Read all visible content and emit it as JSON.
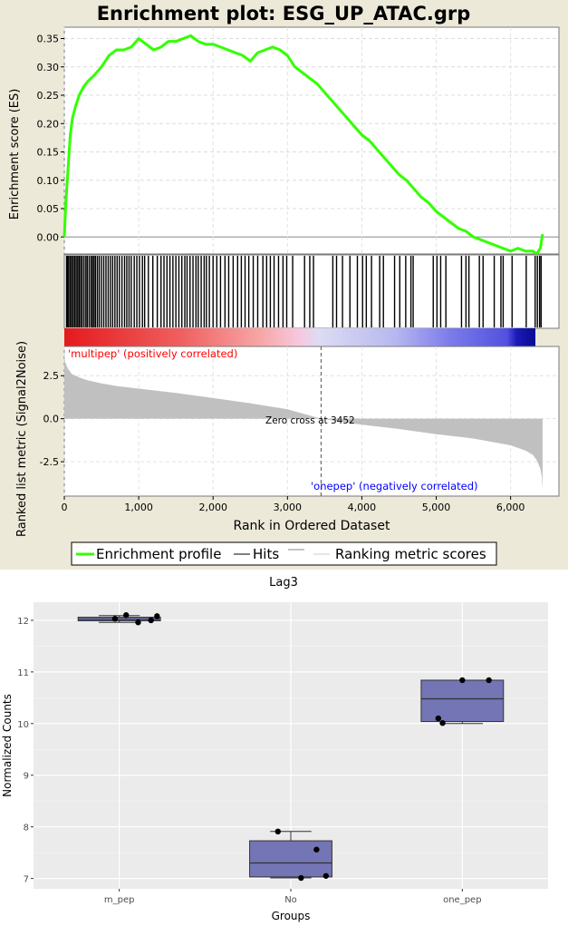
{
  "colors": {
    "es_line": "#33ff00",
    "hits": "#000000",
    "metric_fill": "#c0c0c0",
    "positive_label": "#ff0000",
    "negative_label": "#0000ff",
    "box_fill": "#7375b5",
    "panel_bg": "#ebebeb",
    "frame_bg": "#ece9d8"
  },
  "gsea": {
    "title": "Enrichment plot: ESG_UP_ATAC.grp",
    "es_ylabel": "Enrichment score (ES)",
    "metric_ylabel": "Ranked list metric (Signal2Noise)",
    "xlabel": "Rank in Ordered Dataset",
    "positive_label": "'multipep' (positively correlated)",
    "negative_label": "'onepep' (negatively correlated)",
    "zero_cross_label": "Zero cross at 3452",
    "legend": {
      "enrichment": "Enrichment profile",
      "hits": "Hits",
      "ranking": "Ranking metric scores"
    }
  },
  "boxplot": {
    "title": "Lag3",
    "xlabel": "Groups",
    "ylabel": "Normalized Counts"
  },
  "chart_data": [
    {
      "type": "line",
      "title": "Enrichment plot: ESG_UP_ATAC.grp",
      "ylabel": "Enrichment score (ES)",
      "xlabel": "Rank in Ordered Dataset",
      "xlim": [
        0,
        6650
      ],
      "ylim": [
        -0.03,
        0.37
      ],
      "xticks": [
        0,
        1000,
        2000,
        3000,
        4000,
        5000,
        6000
      ],
      "xtick_labels": [
        "0",
        "1,000",
        "2,000",
        "3,000",
        "4,000",
        "5,000",
        "6,000"
      ],
      "yticks": [
        0.0,
        0.05,
        0.1,
        0.15,
        0.2,
        0.25,
        0.3,
        0.35
      ],
      "ytick_labels": [
        "0.00",
        "0.05",
        "0.10",
        "0.15",
        "0.20",
        "0.25",
        "0.30",
        "0.35"
      ],
      "series": [
        {
          "name": "Enrichment profile",
          "x": [
            0,
            20,
            50,
            80,
            110,
            150,
            200,
            260,
            320,
            400,
            500,
            600,
            700,
            800,
            900,
            1000,
            1100,
            1200,
            1300,
            1400,
            1500,
            1600,
            1700,
            1800,
            1900,
            2000,
            2100,
            2200,
            2300,
            2400,
            2500,
            2600,
            2700,
            2800,
            2900,
            3000,
            3100,
            3200,
            3300,
            3400,
            3500,
            3600,
            3700,
            3800,
            3900,
            4000,
            4100,
            4200,
            4300,
            4400,
            4500,
            4600,
            4700,
            4800,
            4900,
            5000,
            5100,
            5200,
            5300,
            5400,
            5500,
            5600,
            5700,
            5800,
            5900,
            6000,
            6100,
            6200,
            6300,
            6350,
            6400,
            6430
          ],
          "y": [
            0.0,
            0.06,
            0.12,
            0.18,
            0.21,
            0.23,
            0.25,
            0.265,
            0.275,
            0.285,
            0.3,
            0.32,
            0.33,
            0.33,
            0.335,
            0.35,
            0.34,
            0.33,
            0.335,
            0.345,
            0.345,
            0.35,
            0.355,
            0.345,
            0.34,
            0.34,
            0.335,
            0.33,
            0.325,
            0.32,
            0.31,
            0.325,
            0.33,
            0.335,
            0.33,
            0.32,
            0.3,
            0.29,
            0.28,
            0.27,
            0.255,
            0.24,
            0.225,
            0.21,
            0.195,
            0.18,
            0.17,
            0.155,
            0.14,
            0.125,
            0.11,
            0.1,
            0.085,
            0.07,
            0.06,
            0.045,
            0.035,
            0.025,
            0.015,
            0.01,
            0.0,
            -0.005,
            -0.01,
            -0.015,
            -0.02,
            -0.025,
            -0.02,
            -0.025,
            -0.025,
            -0.03,
            -0.02,
            0.005
          ]
        }
      ]
    },
    {
      "type": "scatter",
      "title": "",
      "ylabel": "",
      "xlabel": "Rank in Ordered Dataset",
      "xlim": [
        0,
        6650
      ],
      "series": [
        {
          "name": "Hits",
          "x": [
            30,
            45,
            60,
            80,
            100,
            120,
            140,
            160,
            180,
            200,
            220,
            240,
            265,
            290,
            310,
            335,
            360,
            380,
            400,
            420,
            445,
            470,
            500,
            530,
            560,
            590,
            620,
            650,
            680,
            710,
            740,
            775,
            810,
            840,
            870,
            900,
            940,
            975,
            1010,
            1050,
            1080,
            1130,
            1190,
            1250,
            1300,
            1340,
            1380,
            1420,
            1460,
            1500,
            1540,
            1580,
            1620,
            1650,
            1690,
            1730,
            1770,
            1800,
            1840,
            1880,
            1910,
            1950,
            2000,
            2050,
            2100,
            2160,
            2210,
            2270,
            2330,
            2380,
            2430,
            2480,
            2540,
            2600,
            2670,
            2720,
            2770,
            2820,
            2880,
            2940,
            2990,
            3070,
            3230,
            3300,
            3350,
            3610,
            3660,
            3740,
            3840,
            3940,
            4010,
            4060,
            4130,
            4240,
            4290,
            4440,
            4510,
            4590,
            4660,
            4690,
            4960,
            5010,
            5060,
            5130,
            5340,
            5400,
            5440,
            5580,
            5630,
            5780,
            5870,
            5900,
            6020,
            6210,
            6330,
            6360,
            6390,
            6410
          ]
        }
      ]
    },
    {
      "type": "area",
      "title": "",
      "ylabel": "Ranked list metric (Signal2Noise)",
      "xlabel": "Rank in Ordered Dataset",
      "xlim": [
        0,
        6650
      ],
      "ylim": [
        -4.5,
        4.2
      ],
      "yticks": [
        2.5,
        0.0,
        -2.5
      ],
      "ytick_labels": [
        "2.5",
        "0.0",
        "-2.5"
      ],
      "zero_cross": 3452,
      "series": [
        {
          "name": "Ranking metric scores",
          "x": [
            0,
            10,
            50,
            100,
            200,
            300,
            500,
            700,
            1000,
            1500,
            2000,
            2500,
            3000,
            3452,
            4000,
            4500,
            5000,
            5500,
            6000,
            6200,
            6300,
            6350,
            6400,
            6420,
            6430
          ],
          "y": [
            4.0,
            3.3,
            2.9,
            2.6,
            2.4,
            2.25,
            2.05,
            1.9,
            1.75,
            1.5,
            1.2,
            0.9,
            0.55,
            0.0,
            -0.35,
            -0.6,
            -0.9,
            -1.15,
            -1.55,
            -1.85,
            -2.1,
            -2.4,
            -2.9,
            -3.4,
            -4.1
          ]
        }
      ]
    },
    {
      "type": "box",
      "title": "Lag3",
      "xlabel": "Groups",
      "ylabel": "Normalized Counts",
      "categories": [
        "m_pep",
        "No",
        "one_pep"
      ],
      "ylim": [
        6.8,
        12.35
      ],
      "yticks": [
        7,
        8,
        9,
        10,
        11,
        12
      ],
      "boxes": [
        {
          "q1": 11.99,
          "median": 12.02,
          "q3": 12.06,
          "whisker_low": 11.96,
          "whisker_high": 12.09
        },
        {
          "q1": 7.03,
          "median": 7.3,
          "q3": 7.73,
          "whisker_low": 7.01,
          "whisker_high": 7.91
        },
        {
          "q1": 10.04,
          "median": 10.48,
          "q3": 10.84,
          "whisker_low": 10.0,
          "whisker_high": 10.84
        }
      ],
      "points": [
        {
          "group": "m_pep",
          "x_jitter": -0.05,
          "y": 12.03
        },
        {
          "group": "m_pep",
          "x_jitter": 0.08,
          "y": 12.1
        },
        {
          "group": "m_pep",
          "x_jitter": 0.22,
          "y": 11.96
        },
        {
          "group": "m_pep",
          "x_jitter": 0.37,
          "y": 12.0
        },
        {
          "group": "m_pep",
          "x_jitter": 0.44,
          "y": 12.08
        },
        {
          "group": "No",
          "x_jitter": -0.15,
          "y": 7.91
        },
        {
          "group": "No",
          "x_jitter": 0.3,
          "y": 7.56
        },
        {
          "group": "No",
          "x_jitter": 0.41,
          "y": 7.05
        },
        {
          "group": "No",
          "x_jitter": 0.12,
          "y": 7.01
        },
        {
          "group": "one_pep",
          "x_jitter": -0.28,
          "y": 10.1
        },
        {
          "group": "one_pep",
          "x_jitter": -0.23,
          "y": 10.01
        },
        {
          "group": "one_pep",
          "x_jitter": 0.0,
          "y": 10.84
        },
        {
          "group": "one_pep",
          "x_jitter": 0.31,
          "y": 10.84
        }
      ]
    }
  ]
}
